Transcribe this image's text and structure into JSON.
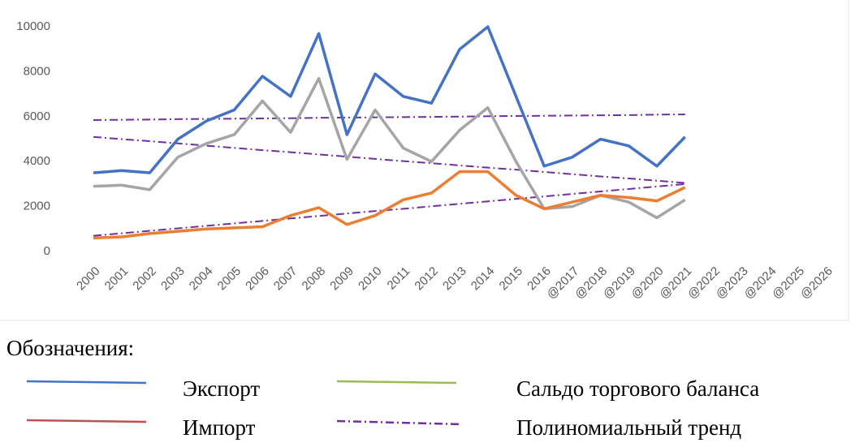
{
  "chart_data": {
    "type": "line",
    "categories": [
      "2000",
      "2001",
      "2002",
      "2003",
      "2004",
      "2005",
      "2006",
      "2007",
      "2008",
      "2009",
      "2010",
      "2011",
      "2012",
      "2013",
      "2014",
      "2015",
      "2016",
      "@2017",
      "@2018",
      "@2019",
      "@2020",
      "@2021",
      "@2022",
      "@2023",
      "@2024",
      "@2025",
      "@2026"
    ],
    "ylim": [
      0,
      10000
    ],
    "yticks": [
      0,
      2000,
      4000,
      6000,
      8000,
      10000
    ],
    "grid": false,
    "legend_title": "Обозначения:",
    "series": [
      {
        "name": "Экспорт",
        "color": "#4472c4",
        "legend_color": "#4472c4",
        "values": [
          3500,
          3600,
          3500,
          5000,
          5800,
          6300,
          7800,
          6900,
          9700,
          5200,
          7900,
          6900,
          6600,
          9000,
          10000,
          6900,
          3800,
          4200,
          5000,
          4700,
          3800,
          5100,
          null,
          null,
          null,
          null,
          null
        ]
      },
      {
        "name": "Импорт",
        "color": "#ed7d31",
        "legend_color": "#c0504d",
        "values": [
          600,
          650,
          800,
          900,
          1000,
          1050,
          1100,
          1600,
          1950,
          1200,
          1600,
          2300,
          2600,
          3550,
          3550,
          2500,
          1900,
          2200,
          2500,
          2400,
          2250,
          2850,
          null,
          null,
          null,
          null,
          null
        ]
      },
      {
        "name": "Сальдо торгового баланса",
        "color": "#a5a5a5",
        "legend_color": "#9bbb59",
        "values": [
          2900,
          2950,
          2750,
          4200,
          4800,
          5200,
          6700,
          5300,
          7700,
          4100,
          6300,
          4600,
          4000,
          5400,
          6400,
          4000,
          1900,
          2000,
          2500,
          2200,
          1500,
          2300,
          null,
          null,
          null,
          null,
          null
        ]
      }
    ],
    "trend": {
      "name": "Полиномиальный тренд",
      "color": "#7030a0",
      "lines": [
        {
          "values": [
            5850,
            5860,
            5870,
            5890,
            5900,
            5910,
            5920,
            5930,
            5950,
            5960,
            5970,
            5980,
            5990,
            6000,
            6020,
            6030,
            6040,
            6050,
            6060,
            6070,
            6090,
            6100
          ]
        },
        {
          "values": [
            5100,
            5000,
            4910,
            4810,
            4710,
            4610,
            4510,
            4420,
            4320,
            4220,
            4120,
            4020,
            3930,
            3830,
            3730,
            3640,
            3540,
            3440,
            3340,
            3250,
            3150,
            3050
          ]
        },
        {
          "values": [
            700,
            810,
            920,
            1030,
            1140,
            1250,
            1360,
            1470,
            1580,
            1690,
            1800,
            1900,
            2010,
            2120,
            2230,
            2340,
            2450,
            2560,
            2670,
            2780,
            2890,
            3000
          ]
        }
      ]
    }
  }
}
